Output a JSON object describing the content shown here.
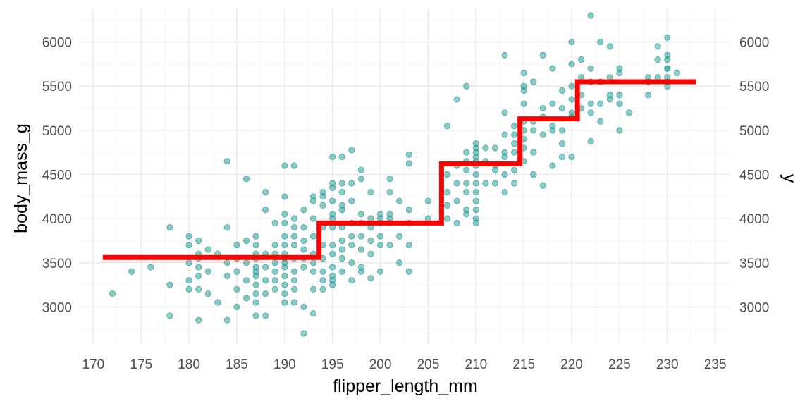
{
  "chart_data": {
    "type": "scatter",
    "xlabel": "flipper_length_mm",
    "ylabel": "body_mass_g",
    "ylabel_right": "y",
    "xlim": [
      168.5,
      236.5
    ],
    "ylim": [
      2580,
      6380
    ],
    "x_ticks": [
      170,
      175,
      180,
      185,
      190,
      195,
      200,
      205,
      210,
      215,
      220,
      225,
      230,
      235
    ],
    "x_tick_labels": [
      "170",
      "175",
      "180",
      "185",
      "190",
      "195",
      "200",
      "205",
      "210",
      "215",
      "220",
      "225",
      "230",
      "235"
    ],
    "y_ticks": [
      3000,
      3500,
      4000,
      4500,
      5000,
      5500,
      6000
    ],
    "y_tick_labels": [
      "3000",
      "3500",
      "4000",
      "4500",
      "5000",
      "5500",
      "6000"
    ],
    "grid": true,
    "colors": {
      "points": "#20a39b",
      "point_stroke": "#127a74",
      "step_line": "#ff0000",
      "grid_major": "#ebebeb",
      "grid_minor": "#f5f5f5"
    },
    "series": [
      {
        "kind": "points",
        "points": [
          [
            172,
            3150
          ],
          [
            174,
            3400
          ],
          [
            176,
            3450
          ],
          [
            178,
            3900
          ],
          [
            178,
            3250
          ],
          [
            178,
            2900
          ],
          [
            180,
            3800
          ],
          [
            180,
            3700
          ],
          [
            180,
            3500
          ],
          [
            180,
            3300
          ],
          [
            180,
            3200
          ],
          [
            181,
            3750
          ],
          [
            181,
            3600
          ],
          [
            181,
            3550
          ],
          [
            181,
            3450
          ],
          [
            181,
            3350
          ],
          [
            181,
            2850
          ],
          [
            181,
            3200
          ],
          [
            182,
            3650
          ],
          [
            182,
            3400
          ],
          [
            182,
            3150
          ],
          [
            183,
            3050
          ],
          [
            183,
            3600
          ],
          [
            184,
            3900
          ],
          [
            184,
            4650
          ],
          [
            184,
            3500
          ],
          [
            184,
            3350
          ],
          [
            184,
            2850
          ],
          [
            185,
            3700
          ],
          [
            185,
            3400
          ],
          [
            185,
            3200
          ],
          [
            185,
            3550
          ],
          [
            185,
            3000
          ],
          [
            186,
            4450
          ],
          [
            186,
            3500
          ],
          [
            186,
            3100
          ],
          [
            186,
            3750
          ],
          [
            186,
            3300
          ],
          [
            187,
            3800
          ],
          [
            187,
            3700
          ],
          [
            187,
            3550
          ],
          [
            187,
            3450
          ],
          [
            187,
            3350
          ],
          [
            187,
            3250
          ],
          [
            187,
            3150
          ],
          [
            187,
            2900
          ],
          [
            187,
            3600
          ],
          [
            187,
            3050
          ],
          [
            187,
            3400
          ],
          [
            188,
            4300
          ],
          [
            188,
            4100
          ],
          [
            188,
            3600
          ],
          [
            188,
            3300
          ],
          [
            188,
            2900
          ],
          [
            188,
            3450
          ],
          [
            188,
            3150
          ],
          [
            189,
            3950
          ],
          [
            189,
            3700
          ],
          [
            189,
            3500
          ],
          [
            189,
            3300
          ],
          [
            189,
            3200
          ],
          [
            189,
            3400
          ],
          [
            189,
            3600
          ],
          [
            190,
            4600
          ],
          [
            190,
            4250
          ],
          [
            190,
            4050
          ],
          [
            190,
            3950
          ],
          [
            190,
            3800
          ],
          [
            190,
            3700
          ],
          [
            190,
            3600
          ],
          [
            190,
            3550
          ],
          [
            190,
            3450
          ],
          [
            190,
            3350
          ],
          [
            190,
            3250
          ],
          [
            190,
            3050
          ],
          [
            190,
            3150
          ],
          [
            190,
            3500
          ],
          [
            191,
            4600
          ],
          [
            191,
            4000
          ],
          [
            191,
            3700
          ],
          [
            191,
            3550
          ],
          [
            191,
            3400
          ],
          [
            191,
            3300
          ],
          [
            191,
            3200
          ],
          [
            191,
            3050
          ],
          [
            191,
            3900
          ],
          [
            191,
            3800
          ],
          [
            192,
            4100
          ],
          [
            192,
            3900
          ],
          [
            192,
            3650
          ],
          [
            192,
            3450
          ],
          [
            192,
            3000
          ],
          [
            192,
            2700
          ],
          [
            192,
            3750
          ],
          [
            192,
            3550
          ],
          [
            193,
            4250
          ],
          [
            193,
            4200
          ],
          [
            193,
            4000
          ],
          [
            193,
            3800
          ],
          [
            193,
            3600
          ],
          [
            193,
            3400
          ],
          [
            193,
            3200
          ],
          [
            193,
            2925
          ],
          [
            193,
            3500
          ],
          [
            194,
            4250
          ],
          [
            194,
            4150
          ],
          [
            194,
            3900
          ],
          [
            194,
            3700
          ],
          [
            194,
            3550
          ],
          [
            194,
            3400
          ],
          [
            194,
            3300
          ],
          [
            194,
            3200
          ],
          [
            194,
            4300
          ],
          [
            195,
            4700
          ],
          [
            195,
            4400
          ],
          [
            195,
            4350
          ],
          [
            195,
            4200
          ],
          [
            195,
            4050
          ],
          [
            195,
            3900
          ],
          [
            195,
            3700
          ],
          [
            195,
            3600
          ],
          [
            195,
            3450
          ],
          [
            195,
            3350
          ],
          [
            195,
            3300
          ],
          [
            195,
            3250
          ],
          [
            195,
            4000
          ],
          [
            196,
            4700
          ],
          [
            196,
            4400
          ],
          [
            196,
            4300
          ],
          [
            196,
            4100
          ],
          [
            196,
            3900
          ],
          [
            196,
            3750
          ],
          [
            196,
            3650
          ],
          [
            196,
            3550
          ],
          [
            196,
            3400
          ],
          [
            196,
            4150
          ],
          [
            197,
            4775
          ],
          [
            197,
            4400
          ],
          [
            197,
            4200
          ],
          [
            197,
            3950
          ],
          [
            197,
            3800
          ],
          [
            197,
            3700
          ],
          [
            197,
            3500
          ],
          [
            197,
            3300
          ],
          [
            198,
            4550
          ],
          [
            198,
            4450
          ],
          [
            198,
            4050
          ],
          [
            198,
            3950
          ],
          [
            198,
            3800
          ],
          [
            198,
            3650
          ],
          [
            198,
            3450
          ],
          [
            198,
            3400
          ],
          [
            199,
            4300
          ],
          [
            199,
            4000
          ],
          [
            199,
            3900
          ],
          [
            199,
            3750
          ],
          [
            199,
            3600
          ],
          [
            199,
            3325
          ],
          [
            200,
            4050
          ],
          [
            200,
            3950
          ],
          [
            200,
            3800
          ],
          [
            200,
            3700
          ],
          [
            200,
            3400
          ],
          [
            200,
            4000
          ],
          [
            201,
            4450
          ],
          [
            201,
            4300
          ],
          [
            201,
            4050
          ],
          [
            201,
            3950
          ],
          [
            201,
            3700
          ],
          [
            201,
            4000
          ],
          [
            202,
            4200
          ],
          [
            202,
            3800
          ],
          [
            202,
            3500
          ],
          [
            203,
            4725
          ],
          [
            203,
            4625
          ],
          [
            203,
            4100
          ],
          [
            203,
            3950
          ],
          [
            203,
            3700
          ],
          [
            203,
            3400
          ],
          [
            205,
            4200
          ],
          [
            205,
            4000
          ],
          [
            207,
            5050
          ],
          [
            207,
            4500
          ],
          [
            207,
            4300
          ],
          [
            207,
            4000
          ],
          [
            207,
            4150
          ],
          [
            208,
            5350
          ],
          [
            208,
            4600
          ],
          [
            208,
            4400
          ],
          [
            208,
            4200
          ],
          [
            208,
            3950
          ],
          [
            209,
            5500
          ],
          [
            209,
            4750
          ],
          [
            209,
            4550
          ],
          [
            209,
            4400
          ],
          [
            209,
            4300
          ],
          [
            209,
            4100
          ],
          [
            209,
            4050
          ],
          [
            209,
            4650
          ],
          [
            210,
            4850
          ],
          [
            210,
            4800
          ],
          [
            210,
            4700
          ],
          [
            210,
            4600
          ],
          [
            210,
            4500
          ],
          [
            210,
            4400
          ],
          [
            210,
            4300
          ],
          [
            210,
            4200
          ],
          [
            210,
            4100
          ],
          [
            210,
            4000
          ],
          [
            210,
            3950
          ],
          [
            210,
            4750
          ],
          [
            210,
            4650
          ],
          [
            211,
            4800
          ],
          [
            211,
            4650
          ],
          [
            211,
            4400
          ],
          [
            212,
            4800
          ],
          [
            212,
            4600
          ],
          [
            212,
            4550
          ],
          [
            212,
            4400
          ],
          [
            213,
            5850
          ],
          [
            213,
            5200
          ],
          [
            213,
            4950
          ],
          [
            213,
            4750
          ],
          [
            213,
            4700
          ],
          [
            213,
            4500
          ],
          [
            213,
            4300
          ],
          [
            214,
            5050
          ],
          [
            214,
            4850
          ],
          [
            214,
            4750
          ],
          [
            214,
            4550
          ],
          [
            214,
            4400
          ],
          [
            214,
            4950
          ],
          [
            215,
            5650
          ],
          [
            215,
            5500
          ],
          [
            215,
            5450
          ],
          [
            215,
            5100
          ],
          [
            215,
            5000
          ],
          [
            215,
            4900
          ],
          [
            215,
            4800
          ],
          [
            215,
            4650
          ],
          [
            215,
            5300
          ],
          [
            216,
            5550
          ],
          [
            216,
            5100
          ],
          [
            216,
            5000
          ],
          [
            216,
            4750
          ],
          [
            216,
            4500
          ],
          [
            217,
            5850
          ],
          [
            217,
            5250
          ],
          [
            217,
            4950
          ],
          [
            217,
            4375
          ],
          [
            217,
            5150
          ],
          [
            218,
            5700
          ],
          [
            218,
            5300
          ],
          [
            218,
            5050
          ],
          [
            218,
            4600
          ],
          [
            218,
            5000
          ],
          [
            219,
            5450
          ],
          [
            219,
            5250
          ],
          [
            219,
            5000
          ],
          [
            219,
            4700
          ],
          [
            219,
            4850
          ],
          [
            220,
            6000
          ],
          [
            220,
            5750
          ],
          [
            220,
            5500
          ],
          [
            220,
            5350
          ],
          [
            220,
            5150
          ],
          [
            220,
            4700
          ],
          [
            220,
            5200
          ],
          [
            221,
            5800
          ],
          [
            221,
            5400
          ],
          [
            221,
            5250
          ],
          [
            221,
            5600
          ],
          [
            222,
            6300
          ],
          [
            222,
            5700
          ],
          [
            222,
            5550
          ],
          [
            222,
            5300
          ],
          [
            222,
            5200
          ],
          [
            222,
            4875
          ],
          [
            223,
            6000
          ],
          [
            223,
            5550
          ],
          [
            223,
            5100
          ],
          [
            223,
            5300
          ],
          [
            224,
            5950
          ],
          [
            224,
            5600
          ],
          [
            224,
            5400
          ],
          [
            224,
            5350
          ],
          [
            225,
            5650
          ],
          [
            225,
            5400
          ],
          [
            225,
            5300
          ],
          [
            225,
            5000
          ],
          [
            225,
            5700
          ],
          [
            226,
            5200
          ],
          [
            228,
            5600
          ],
          [
            228,
            5550
          ],
          [
            228,
            5400
          ],
          [
            229,
            5950
          ],
          [
            229,
            5800
          ],
          [
            229,
            5600
          ],
          [
            230,
            6050
          ],
          [
            230,
            5850
          ],
          [
            230,
            5800
          ],
          [
            230,
            5700
          ],
          [
            230,
            5600
          ],
          [
            230,
            5550
          ],
          [
            230,
            5500
          ],
          [
            230,
            5700
          ],
          [
            231,
            5650
          ]
        ]
      },
      {
        "kind": "step",
        "steps": [
          [
            171.0,
            3560
          ],
          [
            193.6,
            3560
          ],
          [
            193.6,
            3950
          ],
          [
            206.4,
            3950
          ],
          [
            206.4,
            4620
          ],
          [
            214.6,
            4620
          ],
          [
            214.6,
            5130
          ],
          [
            220.6,
            5130
          ],
          [
            220.6,
            5550
          ],
          [
            233.0,
            5550
          ]
        ]
      }
    ]
  }
}
